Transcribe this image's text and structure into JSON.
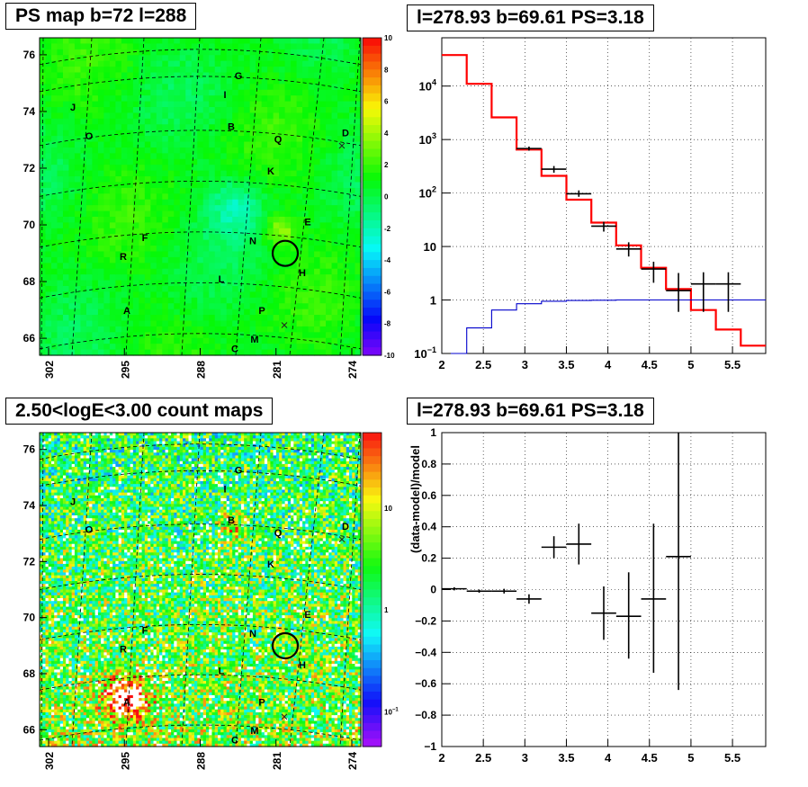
{
  "panels": {
    "tl_title": "PS map b=72 l=288",
    "tr_title": "l=278.93 b=69.61 PS=3.18",
    "bl_title": "2.50<logE<3.00 count maps",
    "br_title": "l=278.93 b=69.61 PS=3.18"
  },
  "chart_data": [
    {
      "type": "heatmap",
      "title": "PS map b=72 l=288",
      "x_ticks": [
        "302",
        "295",
        "288",
        "281",
        "274"
      ],
      "y_ticks": [
        "66",
        "68",
        "70",
        "72",
        "74",
        "76"
      ],
      "colorbar_ticks": [
        "10",
        "8",
        "6",
        "4",
        "2",
        "0",
        "-2",
        "-4",
        "-6",
        "-8",
        "-10"
      ],
      "zlim": [
        -10,
        10
      ],
      "source_labels": [
        "G",
        "I",
        "J",
        "B",
        "O",
        "Q",
        "D",
        "K",
        "E",
        "F",
        "N",
        "R",
        "H",
        "L",
        "A",
        "P",
        "M",
        "C"
      ],
      "marker_circle": {
        "l": 278.93,
        "b": 69.61
      }
    },
    {
      "type": "line",
      "title": "l=278.93 b=69.61 PS=3.18",
      "yscale": "log",
      "xlim": [
        2,
        5.9
      ],
      "ylim": [
        0.1,
        80000
      ],
      "x_ticks": [
        "2",
        "2.5",
        "3",
        "3.5",
        "4",
        "4.5",
        "5",
        "5.5"
      ],
      "y_ticks": [
        {
          "base": "10",
          "exp": "4"
        },
        {
          "base": "10",
          "exp": "3"
        },
        {
          "base": "10",
          "exp": "2"
        },
        {
          "base": "10",
          "exp": ""
        },
        {
          "base": "1",
          "exp": ""
        },
        {
          "base": "10",
          "exp": "−1"
        }
      ],
      "series": [
        {
          "color": "#ff0000",
          "style": "histogram",
          "edges": [
            2,
            2.3,
            2.6,
            2.9,
            3.2,
            3.5,
            3.8,
            4.1,
            4.4,
            4.7,
            5.0,
            5.3,
            5.6,
            5.9
          ],
          "values": [
            38000,
            11000,
            2600,
            650,
            210,
            75,
            28,
            10.5,
            4,
            1.6,
            0.65,
            0.28,
            0.14
          ]
        },
        {
          "color": "#0000cc",
          "style": "histogram",
          "edges": [
            2,
            2.3,
            2.6,
            2.9,
            3.2,
            3.5,
            3.8,
            4.1,
            4.4,
            4.7,
            5.0,
            5.3,
            5.6,
            5.9
          ],
          "values": [
            0.1,
            0.3,
            0.65,
            0.85,
            0.95,
            0.98,
            0.99,
            1.0,
            1.0,
            1.0,
            1.0,
            1.0,
            1.0
          ]
        },
        {
          "color": "#000000",
          "style": "points",
          "points": [
            {
              "x": 3.05,
              "xerr": 0.15,
              "y": 680,
              "ylo": 620,
              "yhi": 740
            },
            {
              "x": 3.35,
              "xerr": 0.15,
              "y": 280,
              "ylo": 240,
              "yhi": 320
            },
            {
              "x": 3.65,
              "xerr": 0.15,
              "y": 97,
              "ylo": 85,
              "yhi": 112
            },
            {
              "x": 3.95,
              "xerr": 0.15,
              "y": 24,
              "ylo": 19,
              "yhi": 29
            },
            {
              "x": 4.25,
              "xerr": 0.15,
              "y": 9,
              "ylo": 6.5,
              "yhi": 12
            },
            {
              "x": 4.55,
              "xerr": 0.15,
              "y": 3.8,
              "ylo": 2.1,
              "yhi": 5.2
            },
            {
              "x": 4.85,
              "xerr": 0.15,
              "y": 1.5,
              "ylo": 0.6,
              "yhi": 3.2
            },
            {
              "x": 5.15,
              "xerr": 0.15,
              "y": 2.0,
              "ylo": 0.6,
              "yhi": 3.3
            },
            {
              "x": 5.45,
              "xerr": 0.15,
              "y": 2.0,
              "ylo": 0.6,
              "yhi": 3.3
            }
          ]
        }
      ]
    },
    {
      "type": "heatmap",
      "title": "2.50<logE<3.00 count maps",
      "x_ticks": [
        "302",
        "295",
        "288",
        "281",
        "274"
      ],
      "y_ticks": [
        "66",
        "68",
        "70",
        "72",
        "74",
        "76"
      ],
      "colorbar_ticks": [
        {
          "base": "10",
          "exp": ""
        },
        {
          "base": "1",
          "exp": ""
        },
        {
          "base": "10",
          "exp": "−1"
        }
      ],
      "zscale": "log",
      "source_labels": [
        "G",
        "I",
        "J",
        "B",
        "O",
        "Q",
        "D",
        "K",
        "E",
        "F",
        "N",
        "R",
        "H",
        "L",
        "A",
        "P",
        "M",
        "C"
      ],
      "marker_circle": {
        "l": 278.93,
        "b": 69.61
      }
    },
    {
      "type": "scatter",
      "title": "l=278.93 b=69.61 PS=3.18",
      "ylabel": "(data-model)/model",
      "xlim": [
        2,
        5.9
      ],
      "ylim": [
        -1,
        1
      ],
      "x_ticks": [
        "2",
        "2.5",
        "3",
        "3.5",
        "4",
        "4.5",
        "5",
        "5.5"
      ],
      "y_ticks": [
        "1",
        "0.8",
        "0.6",
        "0.4",
        "0.2",
        "0",
        "−0.2",
        "−0.4",
        "−0.6",
        "−0.8",
        "−1"
      ],
      "points": [
        {
          "x": 2.15,
          "xerr": 0.15,
          "y": 0.005,
          "ylo": -0.005,
          "yhi": 0.015
        },
        {
          "x": 2.45,
          "xerr": 0.15,
          "y": -0.01,
          "ylo": -0.02,
          "yhi": 0.0
        },
        {
          "x": 2.75,
          "xerr": 0.15,
          "y": -0.01,
          "ylo": -0.025,
          "yhi": 0.005
        },
        {
          "x": 3.05,
          "xerr": 0.15,
          "y": -0.06,
          "ylo": -0.09,
          "yhi": -0.03
        },
        {
          "x": 3.35,
          "xerr": 0.15,
          "y": 0.27,
          "ylo": 0.2,
          "yhi": 0.34
        },
        {
          "x": 3.65,
          "xerr": 0.15,
          "y": 0.29,
          "ylo": 0.16,
          "yhi": 0.42
        },
        {
          "x": 3.95,
          "xerr": 0.15,
          "y": -0.15,
          "ylo": -0.32,
          "yhi": 0.02
        },
        {
          "x": 4.25,
          "xerr": 0.15,
          "y": -0.17,
          "ylo": -0.44,
          "yhi": 0.11
        },
        {
          "x": 4.55,
          "xerr": 0.15,
          "y": -0.06,
          "ylo": -0.53,
          "yhi": 0.42
        },
        {
          "x": 4.85,
          "xerr": 0.15,
          "y": 0.21,
          "ylo": -0.64,
          "yhi": 1.0
        }
      ]
    }
  ]
}
